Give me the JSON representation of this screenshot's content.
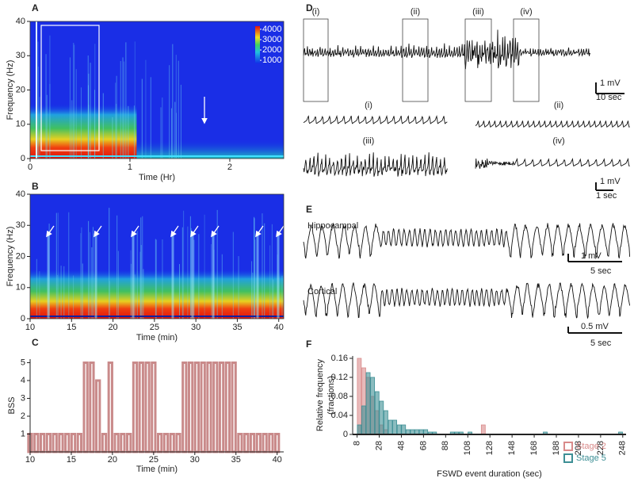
{
  "chart_data": [
    {
      "type": "heatmap",
      "label": "A",
      "ylabel": "Frequency (Hz)",
      "xlabel": "Time (Hr)",
      "xlim": [
        0,
        2.54
      ],
      "xticks": [
        0,
        1,
        2
      ],
      "ylim": [
        0,
        40
      ],
      "yticks": [
        0,
        10,
        20,
        30,
        40
      ],
      "colorbar": {
        "lim": [
          700,
          4300
        ],
        "ticks": [
          1000,
          2000,
          3000,
          4000
        ]
      }
    },
    {
      "type": "heatmap",
      "label": "B",
      "ylabel": "Frequency (Hz)",
      "xlabel": "Time (min)",
      "xlim": [
        10,
        40.6
      ],
      "xticks": [
        10,
        15,
        20,
        25,
        30,
        35,
        40
      ],
      "ylim": [
        0,
        40
      ],
      "yticks": [
        0,
        10,
        20,
        30,
        40
      ]
    },
    {
      "type": "bar",
      "label": "C",
      "ylabel": "BSS",
      "xlabel": "Time (min)",
      "color": "#c98a8a",
      "x": [
        10,
        10.75,
        11.5,
        12.25,
        13,
        13.75,
        14.5,
        15.25,
        16,
        16.75,
        17.5,
        18.25,
        19,
        19.75,
        20.5,
        21.25,
        22,
        22.75,
        23.5,
        24.25,
        25,
        25.75,
        26.5,
        27.25,
        28,
        28.75,
        29.5,
        30.25,
        31,
        31.75,
        32.5,
        33.25,
        34,
        34.75,
        35.5,
        36.25,
        37,
        37.75,
        38.5,
        39.25,
        40
      ],
      "values": [
        1,
        1,
        1,
        1,
        1,
        1,
        1,
        1,
        1,
        5,
        5,
        4,
        1,
        5,
        1,
        1,
        1,
        5,
        5,
        5,
        5,
        1,
        1,
        1,
        1,
        5,
        5,
        5,
        5,
        5,
        5,
        5,
        5,
        5,
        1,
        1,
        1,
        1,
        1,
        1,
        1
      ],
      "xlim": [
        10,
        40.8
      ],
      "xticks": [
        10,
        15,
        20,
        25,
        30,
        35,
        40
      ],
      "ylim": [
        0,
        5.2
      ],
      "yticks": [
        1,
        2,
        3,
        4,
        5
      ]
    },
    {
      "type": "trace",
      "label": "D",
      "segments": [
        "(i)",
        "(ii)",
        "(iii)",
        "(iv)"
      ],
      "scale_bars": [
        {
          "y": "1 mV",
          "x": "10 sec"
        },
        {
          "y": "1 mV",
          "x": "1 sec"
        }
      ]
    },
    {
      "type": "trace",
      "label": "E",
      "channels": [
        "Hippocampal",
        "Cortical"
      ],
      "scale_bars": [
        {
          "y": "1 mV",
          "x": "5 sec"
        },
        {
          "y": "0.5 mV",
          "x": "5 sec"
        }
      ]
    },
    {
      "type": "histogram",
      "label": "F",
      "ylabel": [
        "Relative frequency",
        "(fractions)"
      ],
      "xlabel": "FSWD event duration (sec)",
      "bins": [
        8,
        12,
        16,
        20,
        24,
        28,
        32,
        36,
        40,
        44,
        48,
        52,
        56,
        60,
        64,
        68,
        72,
        76,
        80,
        84,
        88,
        92,
        96,
        100,
        104,
        108,
        112,
        116,
        120,
        124,
        128,
        132,
        136,
        140,
        144,
        148,
        152,
        156,
        160,
        164,
        168,
        172,
        176,
        180,
        184,
        188,
        192,
        196,
        200,
        204,
        208,
        212,
        216,
        220,
        224,
        228,
        232,
        236,
        240,
        244,
        248
      ],
      "series": [
        {
          "name": "Stage 2",
          "color": "#d98a8a",
          "values": [
            0.16,
            0.14,
            0.12,
            0.08,
            0.05,
            0.02,
            0.01,
            0,
            0,
            0,
            0,
            0,
            0,
            0,
            0,
            0,
            0,
            0,
            0,
            0,
            0,
            0,
            0,
            0,
            0,
            0,
            0,
            0,
            0.02,
            0,
            0,
            0,
            0,
            0,
            0,
            0,
            0,
            0,
            0,
            0,
            0,
            0,
            0,
            0,
            0,
            0,
            0,
            0,
            0,
            0,
            0,
            0,
            0,
            0,
            0,
            0,
            0,
            0,
            0,
            0
          ]
        },
        {
          "name": "Stage 5",
          "color": "#3d8f95",
          "values": [
            0.02,
            0.06,
            0.13,
            0.12,
            0.09,
            0.07,
            0.05,
            0.03,
            0.03,
            0.02,
            0.02,
            0.01,
            0.01,
            0.01,
            0.01,
            0.01,
            0.005,
            0.005,
            0,
            0,
            0,
            0.005,
            0.005,
            0.005,
            0,
            0.005,
            0,
            0,
            0,
            0,
            0,
            0,
            0,
            0,
            0,
            0,
            0,
            0,
            0,
            0,
            0,
            0,
            0.005,
            0,
            0,
            0,
            0,
            0,
            0,
            0,
            0,
            0,
            0,
            0,
            0,
            0,
            0,
            0,
            0,
            0.005
          ]
        }
      ],
      "xlim": [
        4,
        251
      ],
      "xticks": [
        8,
        28,
        48,
        68,
        88,
        108,
        128,
        148,
        168,
        188,
        208,
        228,
        248
      ],
      "ylim": [
        0,
        0.165
      ],
      "yticks": [
        0,
        0.04,
        0.08,
        0.12,
        0.16
      ]
    }
  ]
}
